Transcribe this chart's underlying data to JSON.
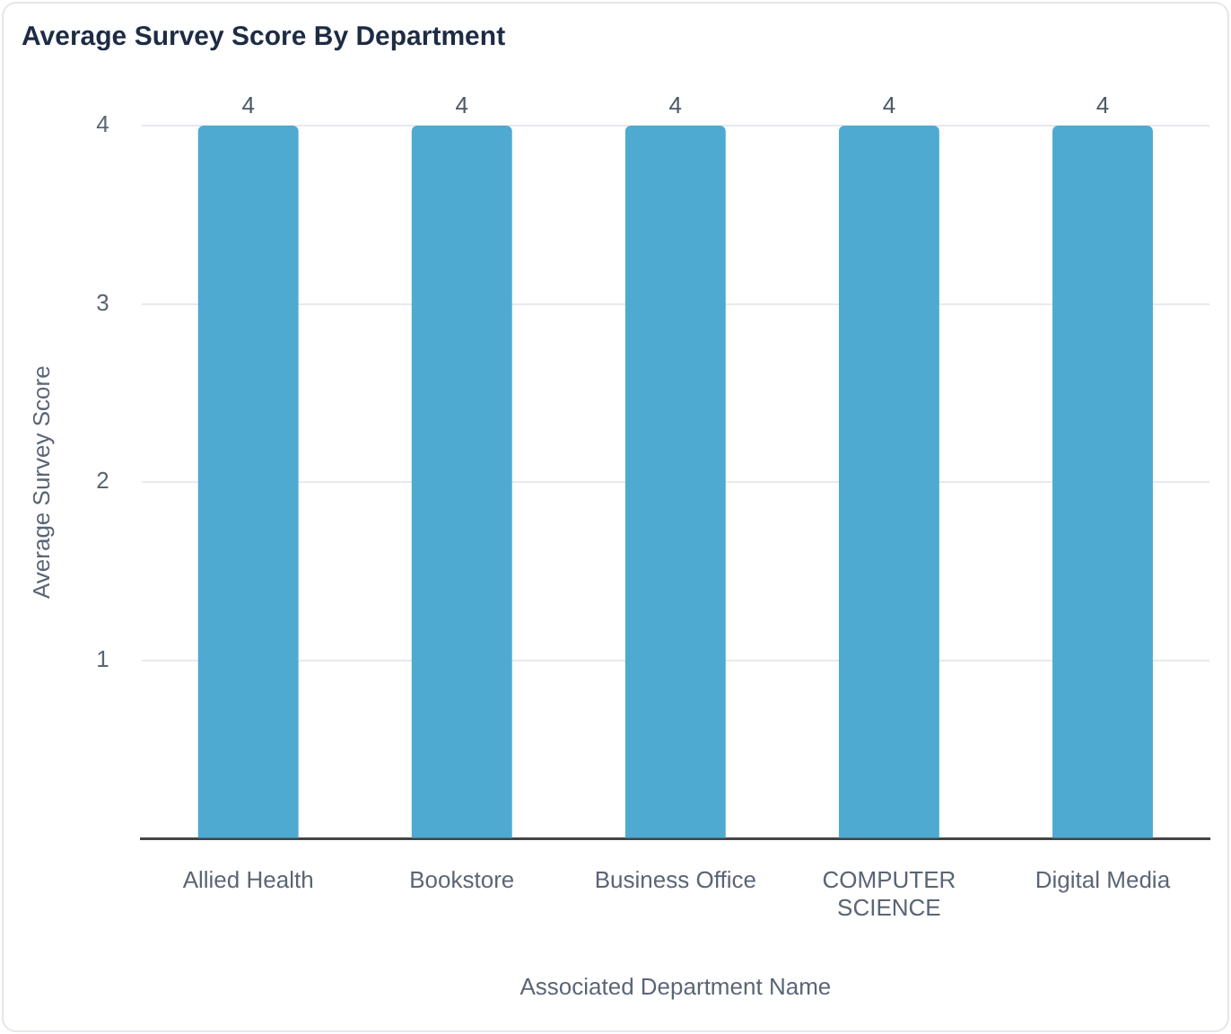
{
  "chart_data": {
    "type": "bar",
    "title": "Average Survey Score By Department",
    "xlabel": "Associated Department Name",
    "ylabel": "Average Survey Score",
    "categories": [
      "Allied Health",
      "Bookstore",
      "Business Office",
      "COMPUTER SCIENCE",
      "Digital Media"
    ],
    "values": [
      4,
      4,
      4,
      4,
      4
    ],
    "color": "#4eaad1",
    "ylim": [
      0,
      4
    ],
    "yticks": [
      {
        "value": 0,
        "label": null
      },
      1,
      2,
      3,
      4
    ],
    "grid": "y",
    "data_labels": true,
    "legend": false
  }
}
